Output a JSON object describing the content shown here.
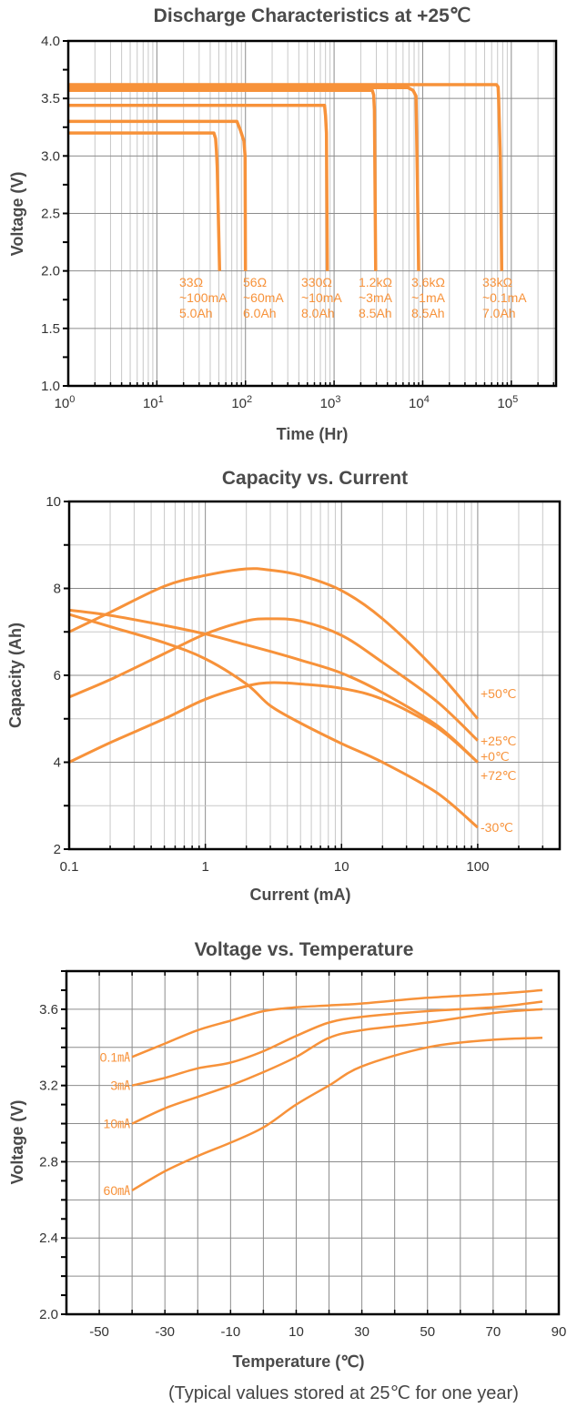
{
  "colors": {
    "series": "#f7923a",
    "grid_major": "#8c8c8c",
    "grid_minor": "#c8c8c8",
    "axis": "#000000",
    "text": "#4a4a4a"
  },
  "footnote": "(Typical values stored at 25℃ for one year)",
  "chart_data": [
    {
      "type": "line",
      "title": "Discharge Characteristics at +25℃",
      "xlabel": "Time (Hr)",
      "ylabel": "Voltage (V)",
      "xscale": "log",
      "xlim": [
        1,
        320000
      ],
      "ylim": [
        1.0,
        4.0
      ],
      "grid": true,
      "xticks": [
        {
          "value": 1,
          "base": "10",
          "exp": "0"
        },
        {
          "value": 10,
          "base": "10",
          "exp": "1"
        },
        {
          "value": 100,
          "base": "10",
          "exp": "2"
        },
        {
          "value": 1000,
          "base": "10",
          "exp": "3"
        },
        {
          "value": 10000,
          "base": "10",
          "exp": "4"
        },
        {
          "value": 100000,
          "base": "10",
          "exp": "5"
        }
      ],
      "yticks": [
        {
          "value": 1.0,
          "label": "1.0"
        },
        {
          "value": 1.5,
          "label": "1.5"
        },
        {
          "value": 2.0,
          "label": "2.0"
        },
        {
          "value": 2.5,
          "label": "2.5"
        },
        {
          "value": 3.0,
          "label": "3.0"
        },
        {
          "value": 3.5,
          "label": "3.5"
        },
        {
          "value": 4.0,
          "label": "4.0"
        }
      ],
      "series": [
        {
          "name": "33Ω",
          "annotation": [
            "33Ω",
            "~100mA",
            "5.0Ah"
          ],
          "x": [
            1,
            44,
            46,
            47,
            48,
            51
          ],
          "y": [
            3.2,
            3.2,
            3.15,
            3.05,
            2.9,
            2.0
          ]
        },
        {
          "name": "56Ω",
          "annotation": [
            "56Ω",
            "~60mA",
            "6.0Ah"
          ],
          "x": [
            1,
            80,
            88,
            96,
            99,
            100
          ],
          "y": [
            3.3,
            3.3,
            3.22,
            3.13,
            3.0,
            2.0
          ]
        },
        {
          "name": "330Ω",
          "annotation": [
            "330Ω",
            "~10mA",
            "8.0Ah"
          ],
          "x": [
            1,
            780,
            800,
            820,
            840
          ],
          "y": [
            3.44,
            3.44,
            3.35,
            3.2,
            2.0
          ]
        },
        {
          "name": "1.2kΩ",
          "annotation": [
            "1.2kΩ",
            "~3mA",
            "8.5Ah"
          ],
          "x": [
            1,
            2700,
            2800,
            2850,
            2950
          ],
          "y": [
            3.57,
            3.57,
            3.53,
            3.4,
            2.0
          ]
        },
        {
          "name": "3.6kΩ",
          "annotation": [
            "3.6kΩ",
            "~1mA",
            "8.5Ah"
          ],
          "x": [
            1,
            6800,
            7800,
            8400,
            8700,
            9000
          ],
          "y": [
            3.595,
            3.595,
            3.57,
            3.52,
            2.8,
            2.0
          ]
        },
        {
          "name": "33kΩ",
          "annotation": [
            "33kΩ",
            "~0.1mA",
            "7.0Ah"
          ],
          "x": [
            1,
            68000,
            71000,
            72000,
            75000,
            78000
          ],
          "y": [
            3.62,
            3.62,
            3.6,
            3.5,
            3.0,
            2.0
          ]
        }
      ]
    },
    {
      "type": "line",
      "title": "Capacity vs. Current",
      "xlabel": "Current (mA)",
      "ylabel": "Capacity (Ah)",
      "xscale": "log",
      "xlim": [
        0.1,
        400
      ],
      "ylim": [
        2,
        10
      ],
      "grid": true,
      "xticks": [
        {
          "value": 0.1,
          "label": "0.1"
        },
        {
          "value": 1,
          "label": "1"
        },
        {
          "value": 10,
          "label": "10"
        },
        {
          "value": 100,
          "label": "100"
        }
      ],
      "yticks": [
        {
          "value": 2,
          "label": "2"
        },
        {
          "value": 4,
          "label": "4"
        },
        {
          "value": 6,
          "label": "6"
        },
        {
          "value": 8,
          "label": "8"
        },
        {
          "value": 10,
          "label": "10"
        }
      ],
      "x": [
        0.1,
        0.2,
        0.5,
        1,
        2,
        3,
        5,
        10,
        20,
        50,
        100
      ],
      "series": [
        {
          "name": "+50℃",
          "values": [
            7.0,
            7.45,
            8.05,
            8.3,
            8.45,
            8.42,
            8.3,
            7.95,
            7.3,
            6.1,
            5.0
          ]
        },
        {
          "name": "+25℃",
          "values": [
            5.5,
            5.9,
            6.5,
            6.95,
            7.25,
            7.3,
            7.25,
            6.92,
            6.3,
            5.4,
            4.5
          ]
        },
        {
          "name": "+0℃",
          "values": [
            7.5,
            7.38,
            7.15,
            6.95,
            6.7,
            6.55,
            6.35,
            6.05,
            5.6,
            4.85,
            4.0
          ]
        },
        {
          "name": "+72℃",
          "values": [
            4.0,
            4.45,
            5.0,
            5.45,
            5.75,
            5.83,
            5.8,
            5.7,
            5.45,
            4.8,
            4.0
          ]
        },
        {
          "name": "-30℃",
          "values": [
            7.4,
            7.12,
            6.75,
            6.38,
            5.8,
            5.3,
            4.9,
            4.43,
            4.0,
            3.3,
            2.5
          ]
        }
      ]
    },
    {
      "type": "line",
      "title": "Voltage vs. Temperature",
      "xlabel": "Temperature (℃)",
      "ylabel": "Voltage (V)",
      "xlim": [
        -60,
        90
      ],
      "ylim": [
        2.0,
        3.8
      ],
      "grid": true,
      "xticks": [
        {
          "value": -50,
          "label": "-50"
        },
        {
          "value": -30,
          "label": "-30"
        },
        {
          "value": -10,
          "label": "-10"
        },
        {
          "value": 10,
          "label": "10"
        },
        {
          "value": 30,
          "label": "30"
        },
        {
          "value": 50,
          "label": "50"
        },
        {
          "value": 70,
          "label": "70"
        },
        {
          "value": 90,
          "label": "90"
        }
      ],
      "yticks": [
        {
          "value": 2.0,
          "label": "2.0"
        },
        {
          "value": 2.4,
          "label": "2.4"
        },
        {
          "value": 2.8,
          "label": "2.8"
        },
        {
          "value": 3.2,
          "label": "3.2"
        },
        {
          "value": 3.6,
          "label": "3.6"
        }
      ],
      "x": [
        -40,
        -30,
        -20,
        -10,
        0,
        10,
        20,
        30,
        50,
        70,
        85
      ],
      "series": [
        {
          "name": "0.1㎃",
          "values": [
            3.35,
            3.42,
            3.49,
            3.54,
            3.59,
            3.61,
            3.62,
            3.63,
            3.66,
            3.68,
            3.7
          ]
        },
        {
          "name": "3㎃",
          "values": [
            3.2,
            3.24,
            3.29,
            3.32,
            3.38,
            3.46,
            3.53,
            3.56,
            3.59,
            3.61,
            3.64
          ]
        },
        {
          "name": "10㎃",
          "values": [
            3.0,
            3.08,
            3.14,
            3.2,
            3.27,
            3.35,
            3.45,
            3.49,
            3.53,
            3.58,
            3.6
          ]
        },
        {
          "name": "60㎃",
          "values": [
            2.65,
            2.75,
            2.83,
            2.9,
            2.98,
            3.1,
            3.2,
            3.3,
            3.4,
            3.44,
            3.45
          ]
        }
      ]
    }
  ]
}
